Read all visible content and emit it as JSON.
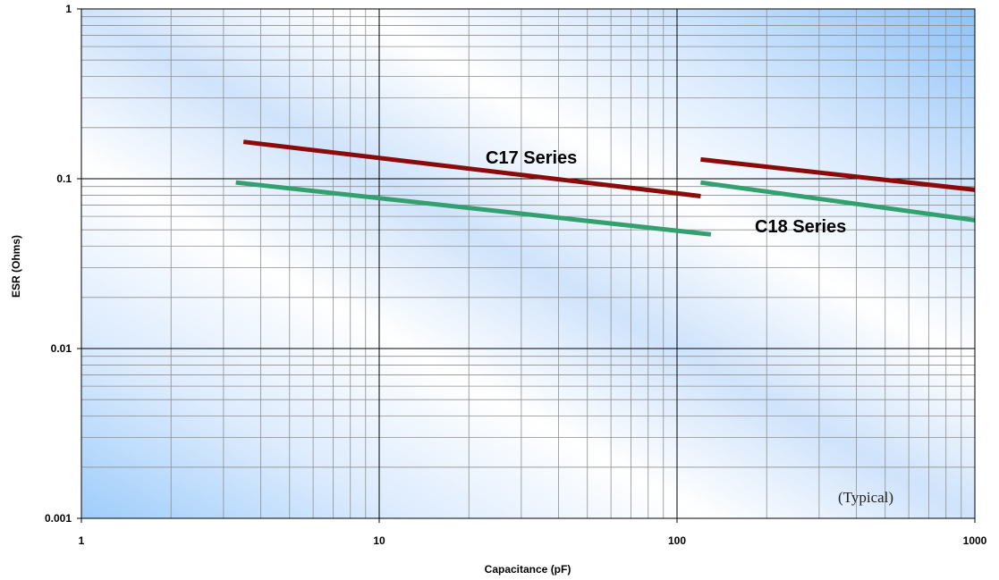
{
  "chart_data": {
    "type": "line",
    "xscale": "log",
    "yscale": "log",
    "xlim": [
      1,
      1000
    ],
    "ylim": [
      0.001,
      1
    ],
    "xlabel": "Capacitance (pF)",
    "ylabel": "ESR (Ohms)",
    "x_ticks": [
      "1",
      "10",
      "100",
      "1000"
    ],
    "y_ticks": [
      "0.001",
      "0.01",
      "0.1",
      "1"
    ],
    "grid": true,
    "annotation": "(Typical)",
    "series": [
      {
        "name": "C17 Series",
        "color": "#8b0a0a",
        "segments": [
          {
            "x": [
              3.5,
              120
            ],
            "y": [
              0.165,
              0.079
            ]
          },
          {
            "x": [
              120,
              1000
            ],
            "y": [
              0.13,
              0.086
            ]
          }
        ]
      },
      {
        "name": "C18 Series",
        "color": "#33a06f",
        "segments": [
          {
            "x": [
              3.3,
              130
            ],
            "y": [
              0.095,
              0.047
            ]
          },
          {
            "x": [
              120,
              1000
            ],
            "y": [
              0.095,
              0.057
            ]
          }
        ]
      }
    ]
  }
}
